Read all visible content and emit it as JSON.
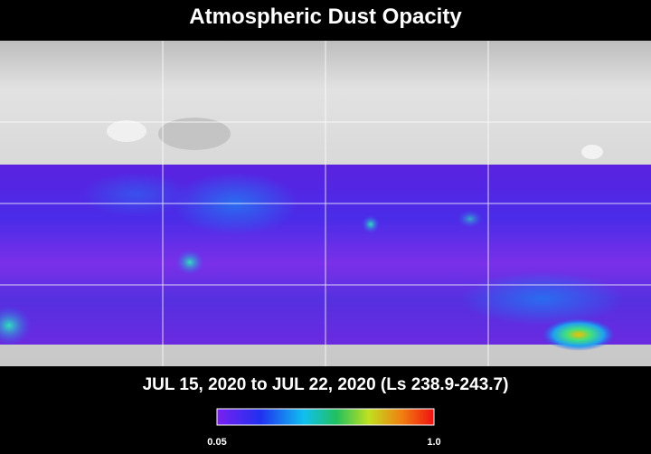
{
  "title": "Atmospheric Dust Opacity",
  "subtitle": "JUL 15, 2020 to JUL 22, 2020 (Ls 238.9-243.7)",
  "colorbar": {
    "min_label": "0.05",
    "max_label": "1.0"
  }
}
